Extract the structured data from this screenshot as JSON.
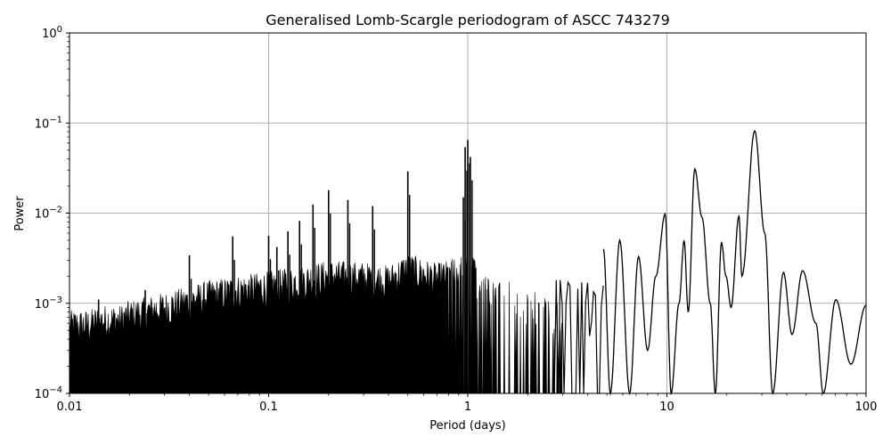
{
  "chart_data": {
    "type": "line",
    "title": "Generalised Lomb-Scargle periodogram of ASCC 743279",
    "xlabel": "Period (days)",
    "ylabel": "Power",
    "xscale": "log",
    "yscale": "log",
    "xlim": [
      0.01,
      100
    ],
    "ylim": [
      0.0001,
      1
    ],
    "grid": true,
    "legend": null,
    "line_color": "#000000",
    "grid_color": "#b0b0b0",
    "x_ticks": [
      {
        "value": 0.01,
        "label": "0.01"
      },
      {
        "value": 0.1,
        "label": "0.1"
      },
      {
        "value": 1,
        "label": "1"
      },
      {
        "value": 10,
        "label": "10"
      },
      {
        "value": 100,
        "label": "100"
      }
    ],
    "y_ticks": [
      {
        "value": 0.0001,
        "base": "10",
        "exp": "−4"
      },
      {
        "value": 0.001,
        "base": "10",
        "exp": "−3"
      },
      {
        "value": 0.01,
        "base": "10",
        "exp": "−2"
      },
      {
        "value": 0.1,
        "base": "10",
        "exp": "−1"
      },
      {
        "value": 1,
        "base": "10",
        "exp": "0"
      }
    ],
    "dense_region": {
      "description": "Densely oscillating periodogram forming a filled black envelope between 0.01 and ~3 days",
      "envelope_upper": [
        [
          0.01,
          0.0007
        ],
        [
          0.012,
          0.0007
        ],
        [
          0.015,
          0.0008
        ],
        [
          0.018,
          0.0008
        ],
        [
          0.02,
          0.0009
        ],
        [
          0.025,
          0.001
        ],
        [
          0.03,
          0.0011
        ],
        [
          0.04,
          0.0013
        ],
        [
          0.05,
          0.0015
        ],
        [
          0.07,
          0.0017
        ],
        [
          0.1,
          0.0019
        ],
        [
          0.15,
          0.0022
        ],
        [
          0.2,
          0.0025
        ],
        [
          0.3,
          0.0024
        ],
        [
          0.4,
          0.0022
        ],
        [
          0.5,
          0.003
        ],
        [
          0.7,
          0.0023
        ],
        [
          1.0,
          0.003
        ],
        [
          1.5,
          0.0016
        ],
        [
          2.0,
          0.0012
        ],
        [
          3.0,
          0.0009
        ]
      ]
    },
    "alias_peaks": [
      {
        "period": 0.014,
        "power": 0.0011
      },
      {
        "period": 0.024,
        "power": 0.0014
      },
      {
        "period": 0.04,
        "power": 0.0034
      },
      {
        "period": 0.066,
        "power": 0.0055
      },
      {
        "period": 0.1,
        "power": 0.0056
      },
      {
        "period": 0.11,
        "power": 0.0042
      },
      {
        "period": 0.125,
        "power": 0.0063
      },
      {
        "period": 0.143,
        "power": 0.0082
      },
      {
        "period": 0.167,
        "power": 0.0125
      },
      {
        "period": 0.2,
        "power": 0.018
      },
      {
        "period": 0.25,
        "power": 0.014
      },
      {
        "period": 0.333,
        "power": 0.012
      },
      {
        "period": 0.5,
        "power": 0.029
      },
      {
        "period": 0.95,
        "power": 0.015
      },
      {
        "period": 0.97,
        "power": 0.054
      },
      {
        "period": 1.0,
        "power": 0.065
      },
      {
        "period": 1.03,
        "power": 0.042
      }
    ],
    "smooth_region": {
      "description": "Resolved peaks at long periods (≈5–100 days)",
      "points": [
        [
          4.8,
          0.004
        ],
        [
          5.2,
          0.0001
        ],
        [
          5.8,
          0.005
        ],
        [
          6.5,
          0.0001
        ],
        [
          7.2,
          0.0033
        ],
        [
          8.0,
          0.0003
        ],
        [
          8.8,
          0.002
        ],
        [
          9.8,
          0.0098
        ],
        [
          10.5,
          0.0001
        ],
        [
          11.5,
          0.001
        ],
        [
          12.2,
          0.0049
        ],
        [
          12.8,
          0.0008
        ],
        [
          13.8,
          0.031
        ],
        [
          15.0,
          0.009
        ],
        [
          16.5,
          0.001
        ],
        [
          17.5,
          0.0001
        ],
        [
          18.8,
          0.0047
        ],
        [
          19.8,
          0.002
        ],
        [
          21.0,
          0.0009
        ],
        [
          23.0,
          0.0093
        ],
        [
          23.8,
          0.002
        ],
        [
          27.6,
          0.082
        ],
        [
          31.0,
          0.006
        ],
        [
          34.0,
          0.0001
        ],
        [
          38.5,
          0.0022
        ],
        [
          42.5,
          0.00045
        ],
        [
          48.0,
          0.0023
        ],
        [
          56.0,
          0.0006
        ],
        [
          61.0,
          0.0001
        ],
        [
          70.5,
          0.0011
        ],
        [
          84.0,
          0.00021
        ],
        [
          100.0,
          0.00095
        ]
      ]
    },
    "strongest_peak": {
      "period": 27.6,
      "power": 0.082
    }
  }
}
